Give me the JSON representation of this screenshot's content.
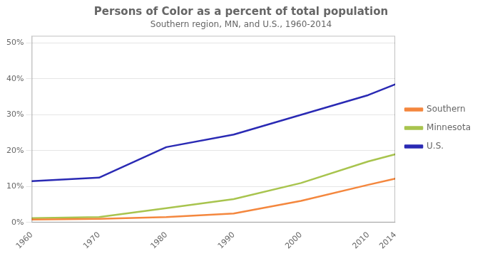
{
  "chart_data": {
    "type": "line",
    "title": "Persons of Color as a percent of total population",
    "subtitle": "Southern region, MN, and U.S., 1960-2014",
    "x": [
      1960,
      1970,
      1980,
      1990,
      2000,
      2010,
      2014
    ],
    "series": [
      {
        "name": "Southern",
        "color": "#f4873e",
        "values": [
          0.8,
          1.0,
          1.5,
          2.5,
          6.0,
          10.5,
          12.2
        ]
      },
      {
        "name": "Minnesota",
        "color": "#a8c44e",
        "values": [
          1.2,
          1.5,
          4.0,
          6.5,
          11.0,
          17.0,
          19.0
        ]
      },
      {
        "name": "U.S.",
        "color": "#2a2ab4",
        "values": [
          11.5,
          12.5,
          21.0,
          24.5,
          30.0,
          35.5,
          38.5
        ]
      }
    ],
    "xlim": [
      1960,
      2014
    ],
    "xticks": [
      1960,
      1970,
      1980,
      1990,
      2000,
      2010,
      2014
    ],
    "ylim": [
      0,
      52
    ],
    "yticks": [
      {
        "value": 0,
        "label": "0%"
      },
      {
        "value": 10,
        "label": "10%"
      },
      {
        "value": 20,
        "label": "20%"
      },
      {
        "value": 30,
        "label": "30%"
      },
      {
        "value": 40,
        "label": "40%"
      },
      {
        "value": 50,
        "label": "50%"
      }
    ],
    "grid": true,
    "legend": "right"
  }
}
